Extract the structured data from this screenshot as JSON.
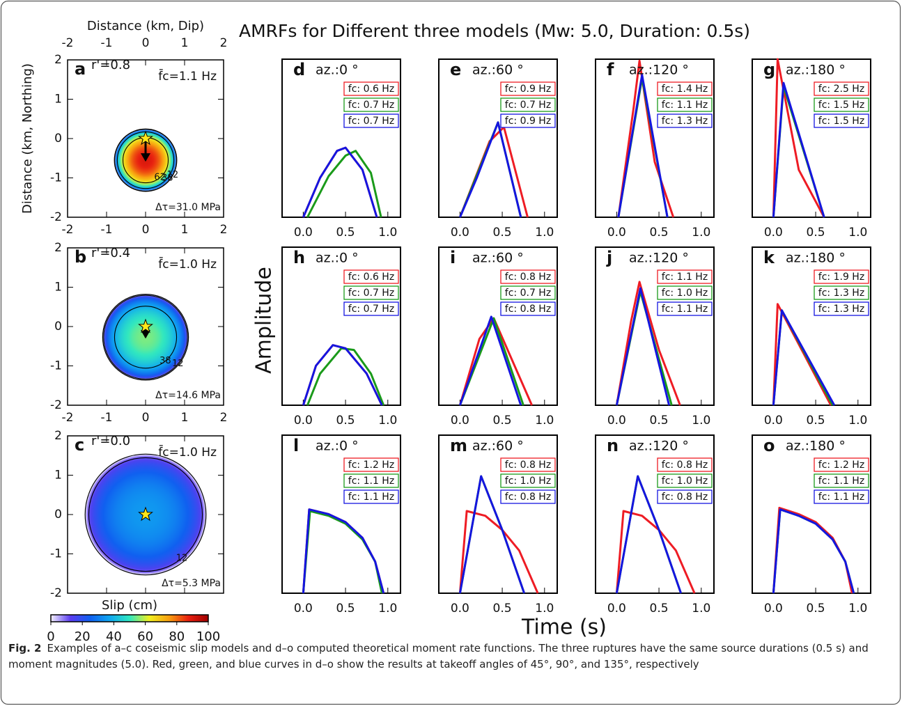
{
  "title": "AMRFs for Different three models (Mw: 5.0, Duration: 0.5s)",
  "y_label": "Amplitude",
  "x_label": "Time (s)",
  "colorbar": {
    "label": "Slip (cm)",
    "lim": [
      0,
      100
    ],
    "ticks": [
      0,
      20,
      40,
      60,
      80,
      100
    ],
    "colors": [
      "#f4f0ff",
      "#5a3cf0",
      "#1060f0",
      "#10a8f0",
      "#30e8c0",
      "#f0f020",
      "#f8a010",
      "#e82010",
      "#a00000"
    ]
  },
  "caption": {
    "label": "Fig. 2",
    "text": "Examples of a–c coseismic slip models and d–o computed theoretical moment rate functions. The three ruptures have the same source durations (0.5 s) and moment magnitudes (5.0). Red, green, and blue curves in d–o show the results at takeoff angles of 45°, 90°, and 135°, respectively"
  },
  "chart_data": [
    {
      "type": "slip-map",
      "panel": "a",
      "r_label": "r'=0.8",
      "fc_label": "f̄c=1.1 Hz",
      "stress_label": "Δτ=31.0 MPa",
      "x_label": "Distance (km, Dip)",
      "y_label": "Distance (km, Northing)",
      "xlim": [
        -2,
        2
      ],
      "ylim": [
        -2,
        2
      ],
      "xticks": [
        -2,
        -1,
        0,
        1,
        2
      ],
      "yticks": [
        -2,
        -1,
        0,
        1,
        2
      ],
      "hypocenter": [
        0,
        0
      ],
      "slip_center": [
        0,
        -0.55
      ],
      "radius": 0.8,
      "peak_slip": 90,
      "contours": [
        62,
        38,
        12
      ]
    },
    {
      "type": "slip-map",
      "panel": "b",
      "r_label": "r'=0.4",
      "fc_label": "f̄c=1.0 Hz",
      "stress_label": "Δτ=14.6 MPa",
      "xlim": [
        -2,
        2
      ],
      "ylim": [
        -2,
        2
      ],
      "xticks": [
        -2,
        -1,
        0,
        1,
        2
      ],
      "yticks": [
        -2,
        -1,
        0,
        1,
        2
      ],
      "hypocenter": [
        0,
        0
      ],
      "slip_center": [
        0,
        -0.27
      ],
      "radius": 1.1,
      "peak_slip": 55,
      "contours": [
        38,
        12
      ]
    },
    {
      "type": "slip-map",
      "panel": "c",
      "r_label": "r'=0.0",
      "fc_label": "f̄c=1.0 Hz",
      "stress_label": "Δτ=5.3 MPa",
      "xlim": [
        -2,
        2
      ],
      "ylim": [
        -2,
        2
      ],
      "yticks": [
        -2,
        -1,
        0,
        1,
        2
      ],
      "hypocenter": [
        0,
        0
      ],
      "slip_center": [
        0,
        0
      ],
      "radius": 1.55,
      "peak_slip": 35,
      "contours": [
        12
      ]
    },
    {
      "type": "line",
      "panel": "d",
      "title": "az.:0 °",
      "xlim": [
        -0.25,
        1.15
      ],
      "ylim": [
        0,
        1
      ],
      "xticks": [
        {
          "value": 0,
          "label": "0.0"
        },
        {
          "value": 0.5,
          "label": "0.5"
        },
        {
          "value": 1,
          "label": "1.0"
        }
      ],
      "series": [
        {
          "name": "fc: 0.6 Hz",
          "color": "#ee1c24",
          "x": [
            0,
            0.2,
            0.4,
            0.5,
            0.7,
            0.87
          ],
          "values": [
            0,
            0.25,
            0.42,
            0.44,
            0.3,
            0
          ]
        },
        {
          "name": "fc: 0.7 Hz",
          "color": "#1a9a1a",
          "x": [
            0.05,
            0.3,
            0.5,
            0.62,
            0.8,
            0.92
          ],
          "values": [
            0,
            0.26,
            0.39,
            0.42,
            0.28,
            0
          ]
        },
        {
          "name": "fc: 0.7 Hz",
          "color": "#1515e0",
          "x": [
            0,
            0.2,
            0.4,
            0.5,
            0.7,
            0.87
          ],
          "values": [
            0,
            0.25,
            0.42,
            0.44,
            0.3,
            0
          ]
        }
      ]
    },
    {
      "type": "line",
      "panel": "e",
      "title": "az.:60 °",
      "xlim": [
        -0.25,
        1.15
      ],
      "ylim": [
        0,
        1
      ],
      "xticks": [
        {
          "value": 0,
          "label": "0.0"
        },
        {
          "value": 0.5,
          "label": "0.5"
        },
        {
          "value": 1,
          "label": "1.0"
        }
      ],
      "series": [
        {
          "name": "fc: 0.9 Hz",
          "color": "#ee1c24",
          "x": [
            0,
            0.35,
            0.52,
            0.8
          ],
          "values": [
            0,
            0.48,
            0.57,
            0
          ]
        },
        {
          "name": "fc: 0.7 Hz",
          "color": "#1a9a1a",
          "x": [
            0,
            0.45,
            0.72
          ],
          "values": [
            0,
            0.6,
            0
          ]
        },
        {
          "name": "fc: 0.9 Hz",
          "color": "#1515e0",
          "x": [
            0,
            0.2,
            0.45,
            0.72
          ],
          "values": [
            0,
            0.25,
            0.6,
            0
          ]
        }
      ]
    },
    {
      "type": "line",
      "panel": "f",
      "title": "az.:120 °",
      "xlim": [
        -0.25,
        1.15
      ],
      "ylim": [
        0,
        1
      ],
      "xticks": [
        {
          "value": 0,
          "label": "0.0"
        },
        {
          "value": 0.5,
          "label": "0.5"
        },
        {
          "value": 1,
          "label": "1.0"
        }
      ],
      "series": [
        {
          "name": "fc: 1.4 Hz",
          "color": "#ee1c24",
          "x": [
            0.02,
            0.2,
            0.27,
            0.45,
            0.67
          ],
          "values": [
            0,
            0.69,
            0.99,
            0.35,
            0
          ]
        },
        {
          "name": "fc: 1.1 Hz",
          "color": "#1a9a1a",
          "x": [
            0.02,
            0.3,
            0.6
          ],
          "values": [
            0,
            0.88,
            0
          ]
        },
        {
          "name": "fc: 1.3 Hz",
          "color": "#1515e0",
          "x": [
            0.02,
            0.3,
            0.6
          ],
          "values": [
            0,
            0.9,
            0
          ]
        }
      ]
    },
    {
      "type": "line",
      "panel": "g",
      "title": "az.:180 °",
      "xlim": [
        -0.25,
        1.15
      ],
      "ylim": [
        0,
        1
      ],
      "xticks": [
        {
          "value": 0,
          "label": "0.0"
        },
        {
          "value": 0.5,
          "label": "0.5"
        },
        {
          "value": 1,
          "label": "1.0"
        }
      ],
      "series": [
        {
          "name": "fc: 2.5 Hz",
          "color": "#ee1c24",
          "x": [
            0,
            0.05,
            0.3,
            0.6
          ],
          "values": [
            0,
            1,
            0.3,
            0
          ]
        },
        {
          "name": "fc: 1.5 Hz",
          "color": "#1a9a1a",
          "x": [
            0,
            0.12,
            0.6
          ],
          "values": [
            0,
            0.83,
            0
          ]
        },
        {
          "name": "fc: 1.5 Hz",
          "color": "#1515e0",
          "x": [
            0,
            0.12,
            0.6
          ],
          "values": [
            0,
            0.85,
            0
          ]
        }
      ]
    },
    {
      "type": "line",
      "panel": "h",
      "title": "az.:0 °",
      "xlim": [
        -0.25,
        1.15
      ],
      "ylim": [
        0,
        1
      ],
      "xticks": [
        {
          "value": 0,
          "label": "0.0"
        },
        {
          "value": 0.5,
          "label": "0.5"
        },
        {
          "value": 1,
          "label": "1.0"
        }
      ],
      "series": [
        {
          "name": "fc: 0.6 Hz",
          "color": "#ee1c24",
          "x": [
            0,
            0.15,
            0.35,
            0.5,
            0.75,
            0.93
          ],
          "values": [
            0,
            0.25,
            0.38,
            0.36,
            0.2,
            0
          ]
        },
        {
          "name": "fc: 0.7 Hz",
          "color": "#1a9a1a",
          "x": [
            0.05,
            0.2,
            0.45,
            0.6,
            0.8,
            0.95
          ],
          "values": [
            0,
            0.2,
            0.36,
            0.35,
            0.2,
            0
          ]
        },
        {
          "name": "fc: 0.7 Hz",
          "color": "#1515e0",
          "x": [
            0,
            0.15,
            0.35,
            0.5,
            0.75,
            0.93
          ],
          "values": [
            0,
            0.25,
            0.38,
            0.36,
            0.2,
            0
          ]
        }
      ]
    },
    {
      "type": "line",
      "panel": "i",
      "title": "az.:60 °",
      "xlim": [
        -0.25,
        1.15
      ],
      "ylim": [
        0,
        1
      ],
      "xticks": [
        {
          "value": 0,
          "label": "0.0"
        },
        {
          "value": 0.5,
          "label": "0.5"
        },
        {
          "value": 1,
          "label": "1.0"
        }
      ],
      "series": [
        {
          "name": "fc: 0.8 Hz",
          "color": "#ee1c24",
          "x": [
            0,
            0.23,
            0.4,
            0.85
          ],
          "values": [
            0,
            0.42,
            0.55,
            0
          ]
        },
        {
          "name": "fc: 0.7 Hz",
          "color": "#1a9a1a",
          "x": [
            0,
            0.4,
            0.75
          ],
          "values": [
            0,
            0.55,
            0
          ]
        },
        {
          "name": "fc: 0.8 Hz",
          "color": "#1515e0",
          "x": [
            0,
            0.37,
            0.72
          ],
          "values": [
            0,
            0.56,
            0
          ]
        }
      ]
    },
    {
      "type": "line",
      "panel": "j",
      "title": "az.:120 °",
      "xlim": [
        -0.25,
        1.15
      ],
      "ylim": [
        0,
        1
      ],
      "xticks": [
        {
          "value": 0,
          "label": "0.0"
        },
        {
          "value": 0.5,
          "label": "0.5"
        },
        {
          "value": 1,
          "label": "1.0"
        }
      ],
      "series": [
        {
          "name": "fc: 1.1 Hz",
          "color": "#ee1c24",
          "x": [
            0,
            0.17,
            0.27,
            0.5,
            0.75
          ],
          "values": [
            0,
            0.53,
            0.78,
            0.35,
            0
          ]
        },
        {
          "name": "fc: 1.0 Hz",
          "color": "#1a9a1a",
          "x": [
            0,
            0.28,
            0.65
          ],
          "values": [
            0,
            0.72,
            0
          ]
        },
        {
          "name": "fc: 1.1 Hz",
          "color": "#1515e0",
          "x": [
            0,
            0.28,
            0.62
          ],
          "values": [
            0,
            0.74,
            0
          ]
        }
      ]
    },
    {
      "type": "line",
      "panel": "k",
      "title": "az.:180 °",
      "xlim": [
        -0.25,
        1.15
      ],
      "ylim": [
        0,
        1
      ],
      "xticks": [
        {
          "value": 0,
          "label": "0.0"
        },
        {
          "value": 0.5,
          "label": "0.5"
        },
        {
          "value": 1,
          "label": "1.0"
        }
      ],
      "series": [
        {
          "name": "fc: 1.9 Hz",
          "color": "#ee1c24",
          "x": [
            0,
            0.05,
            0.68
          ],
          "values": [
            0,
            0.64,
            0
          ]
        },
        {
          "name": "fc: 1.3 Hz",
          "color": "#1a9a1a",
          "x": [
            0,
            0.1,
            0.7
          ],
          "values": [
            0,
            0.6,
            0
          ]
        },
        {
          "name": "fc: 1.3 Hz",
          "color": "#1515e0",
          "x": [
            0,
            0.1,
            0.72
          ],
          "values": [
            0,
            0.6,
            0
          ]
        }
      ]
    },
    {
      "type": "line",
      "panel": "l",
      "title": "az.:0 °",
      "xlim": [
        -0.25,
        1.15
      ],
      "ylim": [
        0,
        1
      ],
      "xticks": [
        {
          "value": 0,
          "label": "0.0"
        },
        {
          "value": 0.5,
          "label": "0.5"
        },
        {
          "value": 1,
          "label": "1.0"
        }
      ],
      "series": [
        {
          "name": "fc: 1.2 Hz",
          "color": "#ee1c24",
          "x": [
            0,
            0.07,
            0.3,
            0.5,
            0.7,
            0.85,
            0.95
          ],
          "values": [
            0,
            0.53,
            0.5,
            0.45,
            0.35,
            0.2,
            0
          ]
        },
        {
          "name": "fc: 1.1 Hz",
          "color": "#1a9a1a",
          "x": [
            0,
            0.08,
            0.3,
            0.5,
            0.7,
            0.85,
            0.93
          ],
          "values": [
            0,
            0.52,
            0.49,
            0.44,
            0.34,
            0.2,
            0
          ]
        },
        {
          "name": "fc: 1.1 Hz",
          "color": "#1515e0",
          "x": [
            0,
            0.07,
            0.3,
            0.5,
            0.7,
            0.85,
            0.95
          ],
          "values": [
            0,
            0.53,
            0.5,
            0.45,
            0.35,
            0.2,
            0
          ]
        }
      ]
    },
    {
      "type": "line",
      "panel": "m",
      "title": "az.:60 °",
      "xlim": [
        -0.25,
        1.15
      ],
      "ylim": [
        0,
        1
      ],
      "xticks": [
        {
          "value": 0,
          "label": "0.0"
        },
        {
          "value": 0.5,
          "label": "0.5"
        },
        {
          "value": 1,
          "label": "1.0"
        }
      ],
      "series": [
        {
          "name": "fc: 0.8 Hz",
          "color": "#ee1c24",
          "x": [
            0,
            0.08,
            0.3,
            0.5,
            0.7,
            0.92
          ],
          "values": [
            0,
            0.52,
            0.49,
            0.4,
            0.27,
            0
          ]
        },
        {
          "name": "fc: 1.0 Hz",
          "color": "#1a9a1a",
          "x": [
            0,
            0.25,
            0.5,
            0.76
          ],
          "values": [
            0,
            0.74,
            0.4,
            0
          ]
        },
        {
          "name": "fc: 0.8 Hz",
          "color": "#1515e0",
          "x": [
            0,
            0.25,
            0.5,
            0.76
          ],
          "values": [
            0,
            0.74,
            0.4,
            0
          ]
        }
      ]
    },
    {
      "type": "line",
      "panel": "n",
      "title": "az.:120 °",
      "xlim": [
        -0.25,
        1.15
      ],
      "ylim": [
        0,
        1
      ],
      "xticks": [
        {
          "value": 0,
          "label": "0.0"
        },
        {
          "value": 0.5,
          "label": "0.5"
        },
        {
          "value": 1,
          "label": "1.0"
        }
      ],
      "series": [
        {
          "name": "fc: 0.8 Hz",
          "color": "#ee1c24",
          "x": [
            0,
            0.08,
            0.3,
            0.5,
            0.7,
            0.92
          ],
          "values": [
            0,
            0.52,
            0.49,
            0.4,
            0.27,
            0
          ]
        },
        {
          "name": "fc: 1.0 Hz",
          "color": "#1a9a1a",
          "x": [
            0,
            0.25,
            0.5,
            0.76
          ],
          "values": [
            0,
            0.74,
            0.4,
            0
          ]
        },
        {
          "name": "fc: 0.8 Hz",
          "color": "#1515e0",
          "x": [
            0,
            0.25,
            0.5,
            0.76
          ],
          "values": [
            0,
            0.74,
            0.4,
            0
          ]
        }
      ]
    },
    {
      "type": "line",
      "panel": "o",
      "title": "az.:180 °",
      "xlim": [
        -0.25,
        1.15
      ],
      "ylim": [
        0,
        1
      ],
      "xticks": [
        {
          "value": 0,
          "label": "0.0"
        },
        {
          "value": 0.5,
          "label": "0.5"
        },
        {
          "value": 1,
          "label": "1.0"
        }
      ],
      "series": [
        {
          "name": "fc: 1.2 Hz",
          "color": "#ee1c24",
          "x": [
            0,
            0.07,
            0.3,
            0.5,
            0.7,
            0.85,
            0.93
          ],
          "values": [
            0,
            0.54,
            0.5,
            0.45,
            0.35,
            0.2,
            0
          ]
        },
        {
          "name": "fc: 1.1 Hz",
          "color": "#1a9a1a",
          "x": [
            0,
            0.08,
            0.3,
            0.5,
            0.7,
            0.85,
            0.95
          ],
          "values": [
            0,
            0.53,
            0.49,
            0.44,
            0.34,
            0.2,
            0
          ]
        },
        {
          "name": "fc: 1.1 Hz",
          "color": "#1515e0",
          "x": [
            0,
            0.08,
            0.3,
            0.5,
            0.7,
            0.85,
            0.95
          ],
          "values": [
            0,
            0.53,
            0.49,
            0.44,
            0.34,
            0.2,
            0
          ]
        }
      ]
    }
  ]
}
